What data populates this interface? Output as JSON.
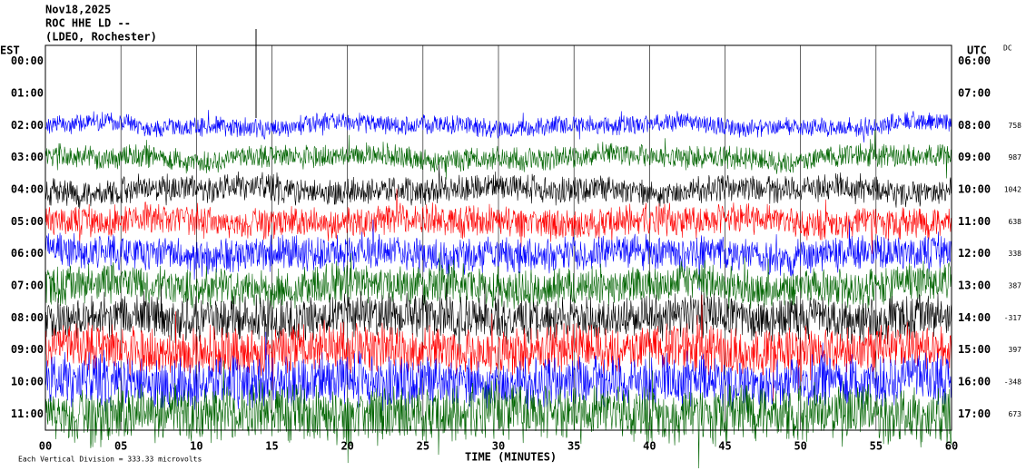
{
  "header": {
    "date": "Nov18,2025",
    "station": "ROC HHE LD --",
    "network": "(LDEO, Rochester)"
  },
  "left_label": "EST",
  "right_label": "UTC",
  "dc_label": "DC",
  "rows": [
    {
      "est": "00:00",
      "utc": "06:00"
    },
    {
      "est": "01:00",
      "utc": "07:00"
    },
    {
      "est": "02:00",
      "utc": "08:00",
      "dc": "758"
    },
    {
      "est": "03:00",
      "utc": "09:00",
      "dc": "987"
    },
    {
      "est": "04:00",
      "utc": "10:00",
      "dc": "1042"
    },
    {
      "est": "05:00",
      "utc": "11:00",
      "dc": "638"
    },
    {
      "est": "06:00",
      "utc": "12:00",
      "dc": "338"
    },
    {
      "est": "07:00",
      "utc": "13:00",
      "dc": "387"
    },
    {
      "est": "08:00",
      "utc": "14:00",
      "dc": "-317"
    },
    {
      "est": "09:00",
      "utc": "15:00",
      "dc": "397"
    },
    {
      "est": "10:00",
      "utc": "16:00",
      "dc": "-348"
    },
    {
      "est": "11:00",
      "utc": "17:00",
      "dc": "673"
    }
  ],
  "x_ticks": [
    "00",
    "05",
    "10",
    "15",
    "20",
    "25",
    "30",
    "35",
    "40",
    "45",
    "50",
    "55",
    "60"
  ],
  "x_label": "TIME (MINUTES)",
  "footer": "Each Vertical Division = 333.33 microvolts",
  "trace_colors": [
    "#000000",
    "#ff0000",
    "#0000ff",
    "#006400"
  ]
}
